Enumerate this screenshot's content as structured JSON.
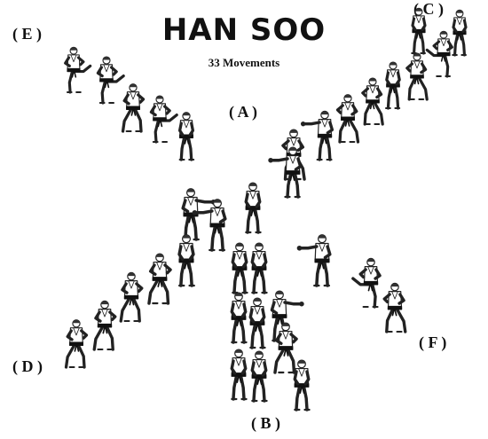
{
  "header": {
    "title": "HAN SOO",
    "subtitle": "33 Movements"
  },
  "points": {
    "A": "( A )",
    "B": "( B )",
    "C": "( C )",
    "D": "( D )",
    "E": "( E )",
    "F": "( F )"
  },
  "figure_icon": "martial-artist-icon",
  "colors": {
    "belt": "#111111",
    "outline": "#222222",
    "uniform": "#ffffff"
  }
}
